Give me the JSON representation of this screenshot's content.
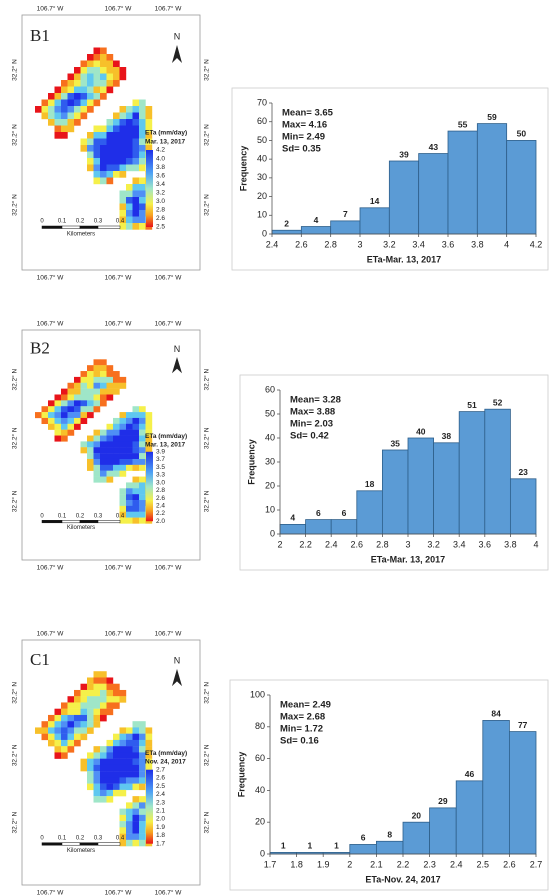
{
  "maps": [
    {
      "label": "B1",
      "north": "N",
      "legend_title": "ETa (mm/day)",
      "legend_date": "Mar. 13, 2017",
      "legend_ticks": [
        "4.2",
        "4.0",
        "3.8",
        "3.6",
        "3.4",
        "3.2",
        "3.0",
        "2.8",
        "2.6",
        "2.5"
      ],
      "lon_labels": [
        "106.7° W",
        "106.7° W",
        "106.7° W"
      ],
      "lat_labels": [
        "32.2° N",
        "32.2° N",
        "32.2° N"
      ],
      "scale_labels": [
        "0",
        "0.1",
        "0.2",
        "0.3",
        "0.4"
      ],
      "scale_unit": "Kilometers"
    },
    {
      "label": "B2",
      "north": "N",
      "legend_title": "ETa (mm/day)",
      "legend_date": "Mar. 13, 2017",
      "legend_ticks": [
        "3.9",
        "3.7",
        "3.5",
        "3.3",
        "3.0",
        "2.8",
        "2.6",
        "2.4",
        "2.2",
        "2.0"
      ],
      "lon_labels": [
        "106.7° W",
        "106.7° W",
        "106.7° W"
      ],
      "lat_labels": [
        "32.2° N",
        "32.2° N",
        "32.2° N"
      ],
      "scale_labels": [
        "0",
        "0.1",
        "0.2",
        "0.3",
        "0.4"
      ],
      "scale_unit": "Kilometers"
    },
    {
      "label": "C1",
      "north": "N",
      "legend_title": "ETa (mm/day)",
      "legend_date": "Nov. 24, 2017",
      "legend_ticks": [
        "2.7",
        "2.6",
        "2.5",
        "2.4",
        "2.3",
        "2.1",
        "2.0",
        "1.9",
        "1.8",
        "1.7"
      ],
      "lon_labels": [
        "106.7° W",
        "106.7° W",
        "106.7° W"
      ],
      "lat_labels": [
        "32.2° N",
        "32.2° N",
        "32.2° N"
      ],
      "scale_labels": [
        "0",
        "0.1",
        "0.2",
        "0.3",
        "0.4"
      ],
      "scale_unit": "Kilometers"
    }
  ],
  "chart_data": [
    {
      "type": "histogram",
      "x_label": "ETa-Mar. 13, 2017",
      "y_label": "Frequency",
      "color": "#5b9bd5",
      "annotations": [
        "Mean= 3.65",
        "Max= 4.16",
        "Min= 2.49",
        "Sd= 0.35"
      ],
      "bins": [
        2.4,
        2.6,
        2.8,
        3,
        3.2,
        3.4,
        3.6,
        3.8,
        4,
        4.2
      ],
      "values": [
        2,
        4,
        7,
        14,
        39,
        43,
        55,
        59,
        50
      ],
      "xlim": [
        2.4,
        4.2
      ],
      "xticks": [
        2.4,
        2.6,
        2.8,
        3,
        3.2,
        3.4,
        3.6,
        3.8,
        4,
        4.2
      ],
      "ylim": [
        0,
        70
      ],
      "yticks": [
        0,
        10,
        20,
        30,
        40,
        50,
        60,
        70
      ]
    },
    {
      "type": "histogram",
      "x_label": "ETa-Mar. 13, 2017",
      "y_label": "Frequency",
      "color": "#5b9bd5",
      "annotations": [
        "Mean= 3.28",
        "Max= 3.88",
        "Min= 2.03",
        "Sd= 0.42"
      ],
      "bins": [
        2,
        2.2,
        2.4,
        2.6,
        2.8,
        3,
        3.2,
        3.4,
        3.6,
        3.8,
        4
      ],
      "values": [
        4,
        6,
        6,
        18,
        35,
        40,
        38,
        51,
        52,
        23
      ],
      "xlim": [
        2,
        4
      ],
      "xticks": [
        2,
        2.2,
        2.4,
        2.6,
        2.8,
        3,
        3.2,
        3.4,
        3.6,
        3.8,
        4
      ],
      "ylim": [
        0,
        60
      ],
      "yticks": [
        0,
        10,
        20,
        30,
        40,
        50,
        60
      ]
    },
    {
      "type": "histogram",
      "x_label": "ETa-Nov. 24, 2017",
      "y_label": "Frequency",
      "color": "#5b9bd5",
      "annotations": [
        "Mean= 2.49",
        "Max= 2.68",
        "Min= 1.72",
        "Sd= 0.16"
      ],
      "bins": [
        1.7,
        1.8,
        1.9,
        2,
        2.1,
        2.2,
        2.3,
        2.4,
        2.5,
        2.6,
        2.7
      ],
      "values": [
        1,
        1,
        1,
        6,
        8,
        20,
        29,
        46,
        84,
        77
      ],
      "xlim": [
        1.7,
        2.7
      ],
      "xticks": [
        1.7,
        1.8,
        1.9,
        2,
        2.1,
        2.2,
        2.3,
        2.4,
        2.5,
        2.6,
        2.7
      ],
      "ylim": [
        0,
        100
      ],
      "yticks": [
        0,
        20,
        40,
        60,
        80,
        100
      ]
    }
  ]
}
